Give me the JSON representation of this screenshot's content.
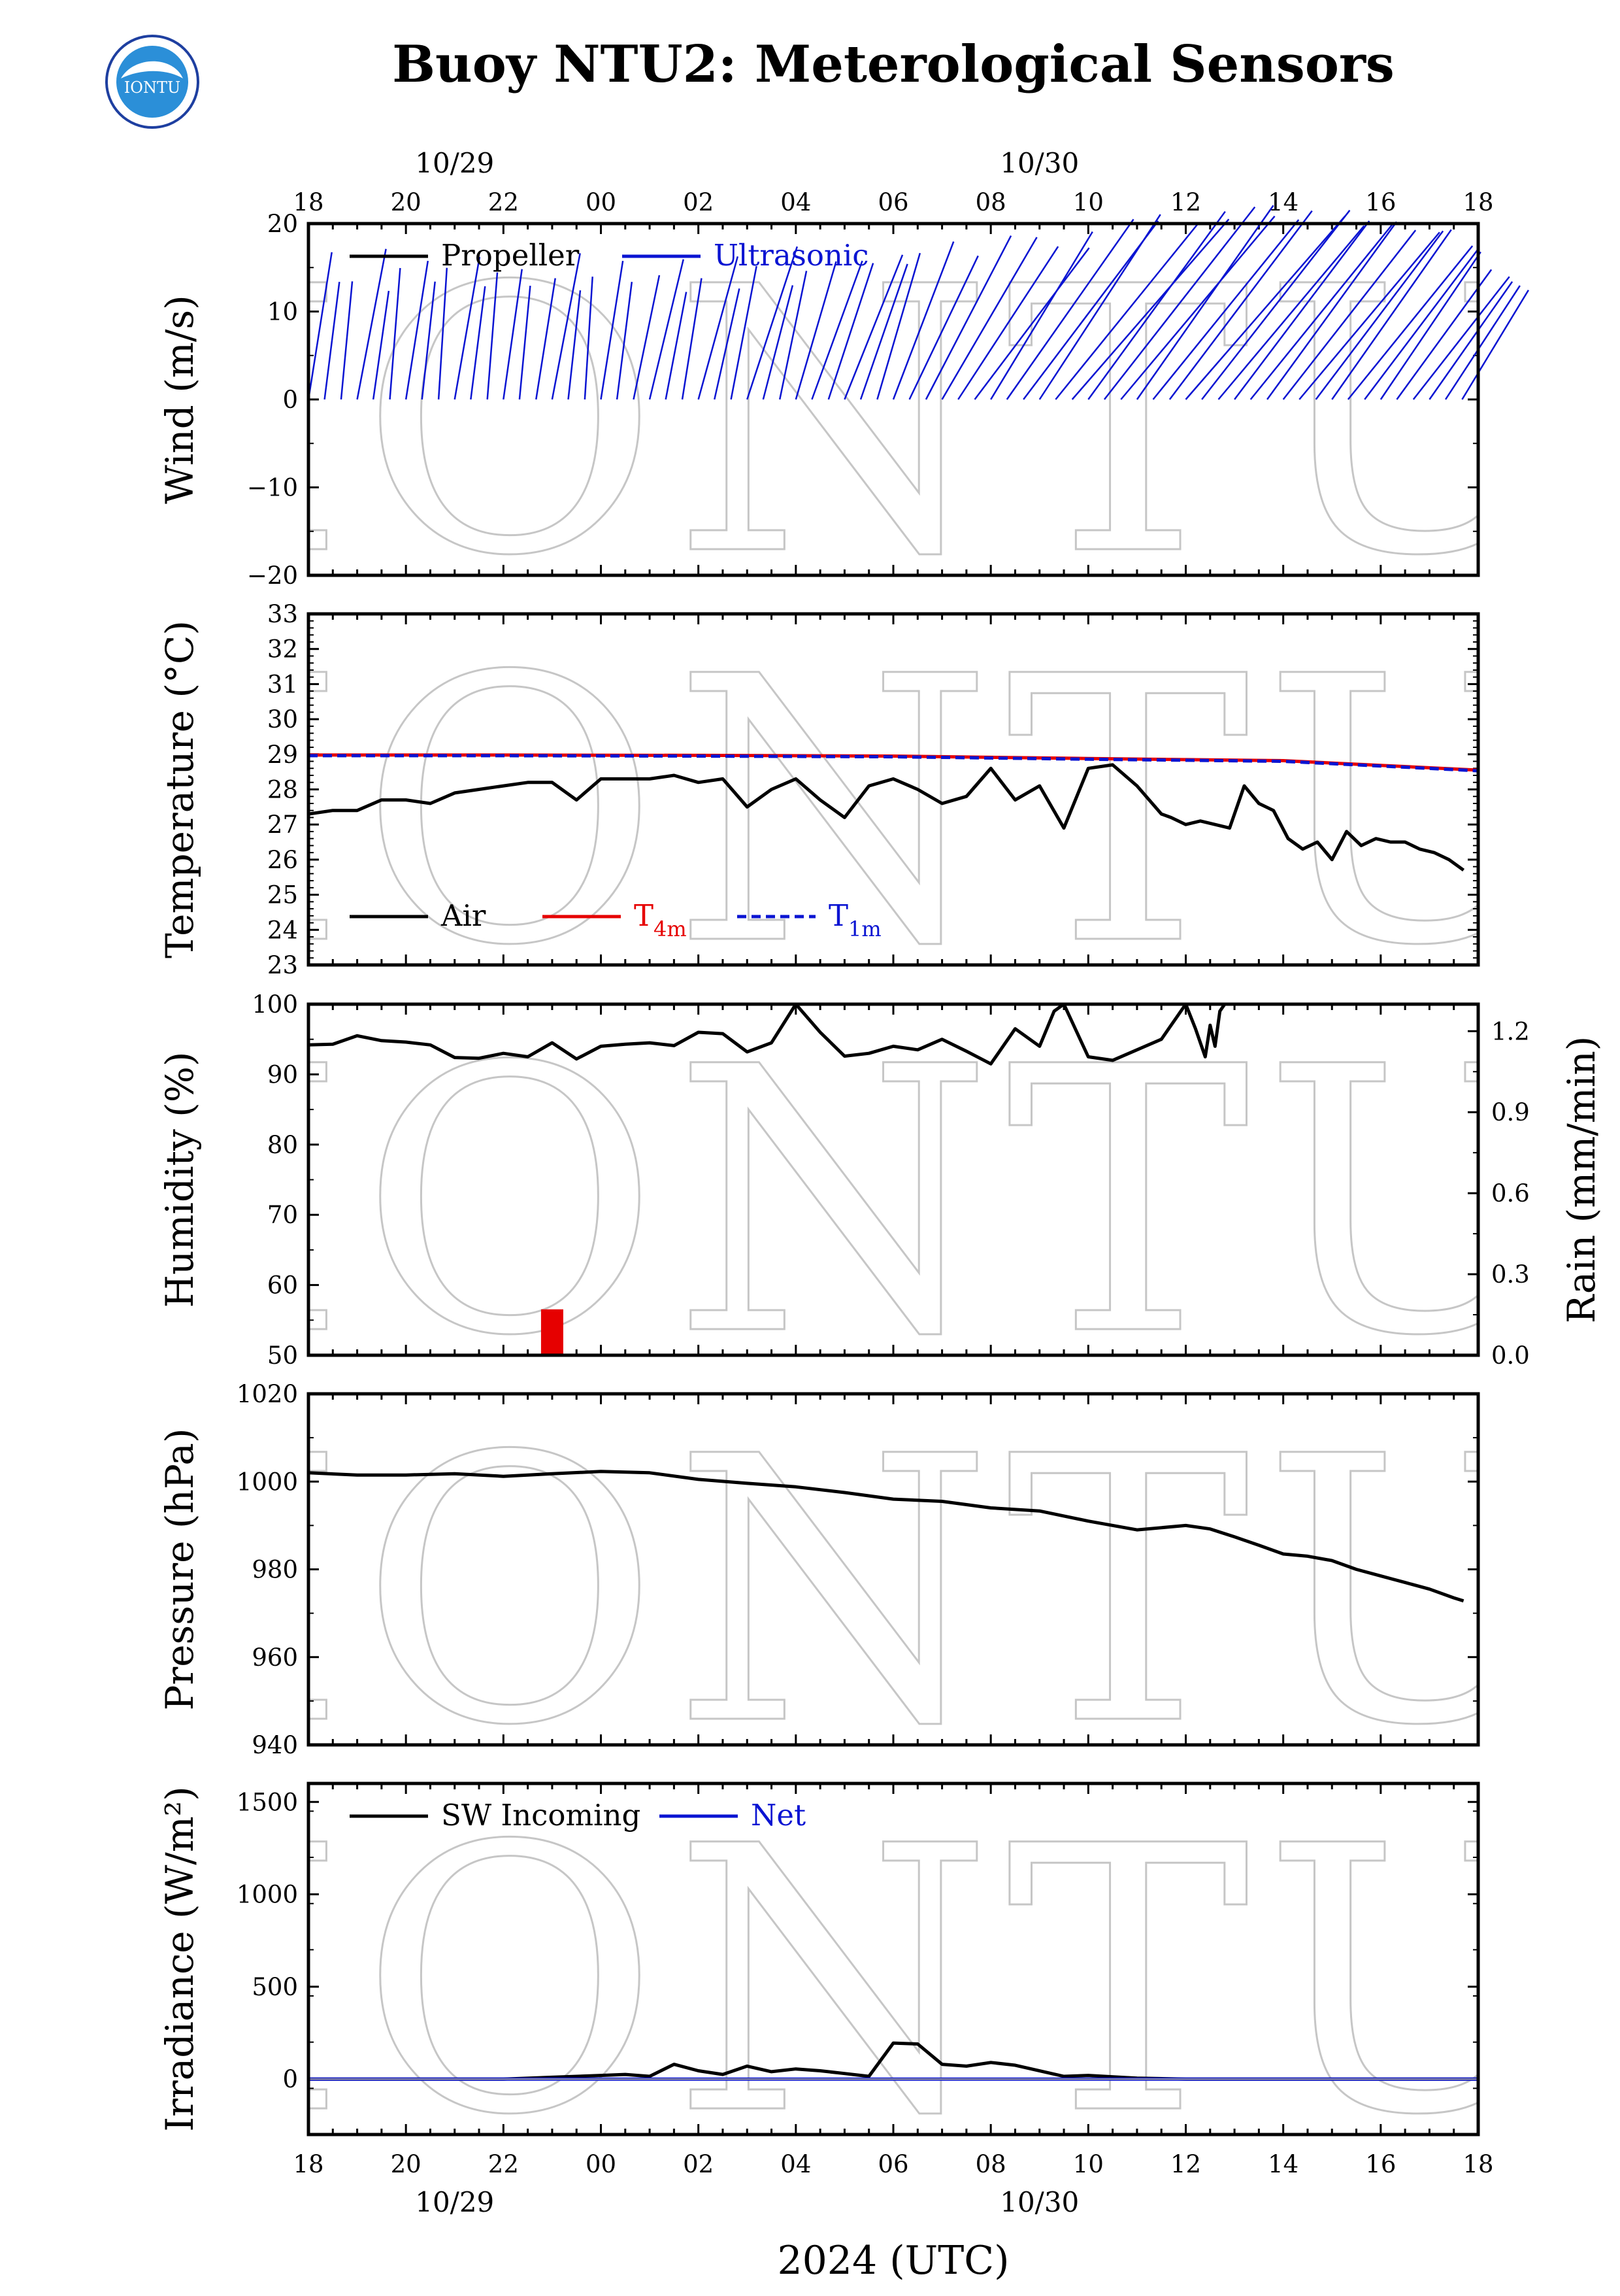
{
  "title": "Buoy NTU2: Meterological Sensors",
  "logo_text": "IONTU",
  "watermark": "IONTU",
  "colors": {
    "black": "#000000",
    "blue": "#0a14d2",
    "red": "#e60000"
  },
  "time_axis": {
    "x_label": "2024 (UTC)",
    "hour_ticks": [
      "18",
      "20",
      "22",
      "00",
      "02",
      "04",
      "06",
      "08",
      "10",
      "12",
      "14",
      "16",
      "18"
    ],
    "date_labels": [
      {
        "text": "10/29",
        "at_hour": 21
      },
      {
        "text": "10/30",
        "at_hour": 33
      }
    ],
    "start_hour": 18,
    "end_hour": 42
  },
  "chart_data": [
    {
      "id": "wind",
      "type": "line",
      "ylabel": "Wind (m/s)",
      "ylim": [
        -20,
        20
      ],
      "yticks": [
        "20",
        "10",
        "0",
        "−10",
        "−20"
      ],
      "legend": [
        {
          "name": "Propeller",
          "color": "#000000"
        },
        {
          "name": "Ultrasonic",
          "color": "#0a14d2"
        }
      ],
      "series": [
        {
          "name": "Ultrasonic",
          "kind": "stick_vectors",
          "color": "#0a14d2",
          "x": [
            18.0,
            18.33,
            18.67,
            19.0,
            19.33,
            19.67,
            20.0,
            20.33,
            20.67,
            21.0,
            21.33,
            21.67,
            22.0,
            22.33,
            22.67,
            23.0,
            23.33,
            23.67,
            24.0,
            24.33,
            24.67,
            25.0,
            25.33,
            25.67,
            26.0,
            26.33,
            26.67,
            27.0,
            27.33,
            27.67,
            28.0,
            28.33,
            28.67,
            29.0,
            29.33,
            29.67,
            30.0,
            30.33,
            30.67,
            31.0,
            31.33,
            31.67,
            32.0,
            32.33,
            32.67,
            33.0,
            33.33,
            33.67,
            34.0,
            34.33,
            34.67,
            35.0,
            35.33,
            35.67,
            36.0,
            36.33,
            36.67,
            37.0,
            37.33,
            37.67,
            38.0,
            38.33,
            38.67,
            39.0,
            39.33,
            39.67,
            40.0,
            40.33,
            40.67,
            41.0,
            41.33,
            41.67
          ],
          "speed": [
            17.0,
            13.5,
            13.5,
            17.5,
            12.5,
            15.0,
            16.0,
            13.5,
            15.0,
            16.5,
            13.0,
            14.5,
            15.0,
            13.0,
            14.0,
            17.0,
            12.5,
            14.0,
            16.0,
            13.5,
            14.5,
            16.5,
            12.5,
            14.0,
            17.0,
            13.0,
            15.5,
            18.5,
            13.5,
            15.0,
            16.5,
            17.0,
            16.5,
            18.0,
            16.5,
            17.5,
            19.5,
            18.5,
            21.5,
            22.0,
            21.5,
            22.5,
            23.0,
            26.0,
            26.5,
            26.0,
            27.0,
            28.5,
            27.5,
            29.0,
            28.5,
            28.0,
            27.5,
            28.0,
            29.0,
            28.5,
            27.0,
            26.5,
            27.0,
            26.0,
            25.5,
            26.0,
            25.0,
            24.5,
            23.5,
            22.5,
            21.0,
            19.0,
            18.5,
            17.0,
            16.0,
            15.0
          ],
          "dir_deg": [
            170,
            172,
            174,
            168,
            171,
            175,
            170,
            173,
            176,
            169,
            172,
            175,
            171,
            174,
            170,
            168,
            173,
            176,
            170,
            172,
            167,
            165,
            168,
            170,
            163,
            166,
            168,
            160,
            164,
            167,
            162,
            158,
            160,
            156,
            159,
            162,
            157,
            152,
            150,
            147,
            144,
            140,
            146,
            142,
            140,
            144,
            138,
            136,
            141,
            139,
            137,
            142,
            138,
            140,
            136,
            139,
            137,
            140,
            138,
            141,
            139,
            137,
            140,
            142,
            138,
            140,
            143,
            141,
            139,
            142,
            144,
            146
          ]
        }
      ]
    },
    {
      "id": "temperature",
      "type": "line",
      "ylabel": "Temperature (°C)",
      "ylim": [
        23,
        33
      ],
      "yticks": [
        "33",
        "32",
        "31",
        "30",
        "29",
        "28",
        "27",
        "26",
        "25",
        "24",
        "23"
      ],
      "legend": [
        {
          "name": "Air",
          "color": "#000000"
        },
        {
          "name": "T",
          "sub": "4m",
          "color": "#e60000"
        },
        {
          "name": "T",
          "sub": "1m",
          "color": "#0a14d2"
        }
      ],
      "series": [
        {
          "name": "Air",
          "color": "#000000",
          "x": [
            18.0,
            18.5,
            19.0,
            19.5,
            20.0,
            20.5,
            21.0,
            21.5,
            22.0,
            22.5,
            23.0,
            23.5,
            24.0,
            24.5,
            25.0,
            25.5,
            26.0,
            26.5,
            27.0,
            27.5,
            28.0,
            28.5,
            29.0,
            29.5,
            30.0,
            30.5,
            31.0,
            31.5,
            32.0,
            32.5,
            33.0,
            33.5,
            34.0,
            34.5,
            35.0,
            35.5,
            35.7,
            36.0,
            36.3,
            36.6,
            36.9,
            37.2,
            37.5,
            37.8,
            38.1,
            38.4,
            38.7,
            39.0,
            39.3,
            39.6,
            39.9,
            40.2,
            40.5,
            40.8,
            41.1,
            41.4,
            41.7
          ],
          "y": [
            27.3,
            27.4,
            27.4,
            27.7,
            27.7,
            27.6,
            27.9,
            28.0,
            28.1,
            28.2,
            28.2,
            27.7,
            28.3,
            28.3,
            28.3,
            28.4,
            28.2,
            28.3,
            27.5,
            28.0,
            28.3,
            27.7,
            27.2,
            28.1,
            28.3,
            28.0,
            27.6,
            27.8,
            28.6,
            27.7,
            28.1,
            26.9,
            28.6,
            28.7,
            28.1,
            27.3,
            27.2,
            27.0,
            27.1,
            27.0,
            26.9,
            28.1,
            27.6,
            27.4,
            26.6,
            26.3,
            26.5,
            26.0,
            26.8,
            26.4,
            26.6,
            26.5,
            26.5,
            26.3,
            26.2,
            26.0,
            25.7
          ],
          "dashed": false
        },
        {
          "name": "T4m",
          "color": "#e60000",
          "x": [
            18.0,
            22.0,
            26.0,
            30.0,
            34.0,
            38.0,
            42.0
          ],
          "y": [
            28.98,
            28.98,
            28.97,
            28.95,
            28.88,
            28.82,
            28.55
          ],
          "dashed": false
        },
        {
          "name": "T1m",
          "color": "#0a14d2",
          "x": [
            18.0,
            22.0,
            26.0,
            30.0,
            34.0,
            38.0,
            42.0
          ],
          "y": [
            28.96,
            28.96,
            28.95,
            28.93,
            28.86,
            28.8,
            28.53
          ],
          "dashed": true
        }
      ]
    },
    {
      "id": "humidity_rain",
      "type": "line",
      "ylabel": "Humidity (%)",
      "ylim": [
        50,
        100
      ],
      "yticks": [
        "100",
        "90",
        "80",
        "70",
        "60",
        "50"
      ],
      "y2label": "Rain (mm/min)",
      "y2lim": [
        0,
        1.3
      ],
      "y2ticks": [
        "1.2",
        "0.9",
        "0.6",
        "0.3",
        "0.0"
      ],
      "series": [
        {
          "name": "Humidity",
          "color": "#000000",
          "x": [
            18.0,
            18.5,
            19.0,
            19.5,
            20.0,
            20.5,
            21.0,
            21.5,
            22.0,
            22.5,
            23.0,
            23.5,
            24.0,
            24.5,
            25.0,
            25.5,
            26.0,
            26.5,
            27.0,
            27.5,
            28.0,
            28.5,
            29.0,
            29.5,
            30.0,
            30.5,
            31.0,
            31.5,
            32.0,
            32.5,
            33.0,
            33.3,
            33.5,
            34.0,
            34.5,
            35.0,
            35.5,
            36.0,
            36.3,
            36.6
          ],
          "y": [
            94.2,
            94.3,
            95.5,
            94.8,
            94.6,
            94.2,
            92.4,
            92.3,
            93.0,
            92.5,
            94.5,
            92.2,
            94.0,
            94.3,
            94.5,
            94.1,
            96.0,
            95.8,
            93.2,
            94.5,
            100.0,
            96.0,
            92.6,
            93.0,
            94.0,
            93.5,
            95.0,
            93.3,
            91.5,
            96.5,
            94.0,
            99.0,
            100.0,
            92.5,
            92.0,
            93.5,
            95.0,
            100.0,
            100.0,
            100.0
          ]
        },
        {
          "name": "Humidity2",
          "color": "#000000",
          "x": [
            36.0,
            36.2,
            36.4,
            36.5,
            36.6,
            36.7,
            36.8
          ],
          "y": [
            100.0,
            96.5,
            92.5,
            97.0,
            94.0,
            99.0,
            100.0
          ]
        },
        {
          "name": "Rain",
          "kind": "bar",
          "color": "#e60000",
          "axis": "y2",
          "x": [
            23.0
          ],
          "y": [
            0.17
          ]
        }
      ]
    },
    {
      "id": "pressure",
      "type": "line",
      "ylabel": "Pressure (hPa)",
      "ylim": [
        940,
        1020
      ],
      "yticks": [
        "1020",
        "1000",
        "980",
        "960",
        "940"
      ],
      "series": [
        {
          "name": "Pressure",
          "color": "#000000",
          "x": [
            18.0,
            19.0,
            20.0,
            21.0,
            22.0,
            23.0,
            24.0,
            25.0,
            26.0,
            27.0,
            28.0,
            29.0,
            30.0,
            31.0,
            32.0,
            33.0,
            34.0,
            35.0,
            36.0,
            36.5,
            37.0,
            37.5,
            38.0,
            38.5,
            39.0,
            39.5,
            40.0,
            40.5,
            41.0,
            41.5,
            41.7
          ],
          "y": [
            1002.0,
            1001.5,
            1001.5,
            1001.8,
            1001.2,
            1001.8,
            1002.3,
            1002.0,
            1000.5,
            999.6,
            998.8,
            997.5,
            996.0,
            995.5,
            994.0,
            993.3,
            991.0,
            989.0,
            990.0,
            989.2,
            987.4,
            985.5,
            983.5,
            983.0,
            982.0,
            980.0,
            978.5,
            977.0,
            975.5,
            973.5,
            972.8
          ]
        }
      ]
    },
    {
      "id": "irradiance",
      "type": "line",
      "ylabel": "Irradiance (W/m²)",
      "ylim": [
        -300,
        1600
      ],
      "yticks": [
        "1500",
        "1000",
        "500",
        "0"
      ],
      "legend": [
        {
          "name": "SW Incoming",
          "color": "#000000"
        },
        {
          "name": "Net",
          "color": "#0a14d2"
        }
      ],
      "series": [
        {
          "name": "SW Incoming",
          "color": "#000000",
          "x": [
            18.0,
            22.0,
            23.0,
            24.0,
            24.5,
            25.0,
            25.5,
            26.0,
            26.5,
            27.0,
            27.5,
            28.0,
            28.5,
            29.0,
            29.5,
            30.0,
            30.5,
            31.0,
            31.5,
            32.0,
            32.5,
            33.0,
            33.5,
            34.0,
            35.0,
            36.0,
            42.0
          ],
          "y": [
            0,
            0,
            10,
            20,
            25,
            15,
            80,
            45,
            25,
            70,
            40,
            55,
            45,
            30,
            15,
            195,
            190,
            80,
            70,
            90,
            75,
            45,
            15,
            20,
            5,
            0,
            0
          ]
        },
        {
          "name": "Net",
          "color": "#0a14d2",
          "x": [
            18.0,
            42.0
          ],
          "y": [
            0,
            0
          ]
        }
      ]
    }
  ]
}
